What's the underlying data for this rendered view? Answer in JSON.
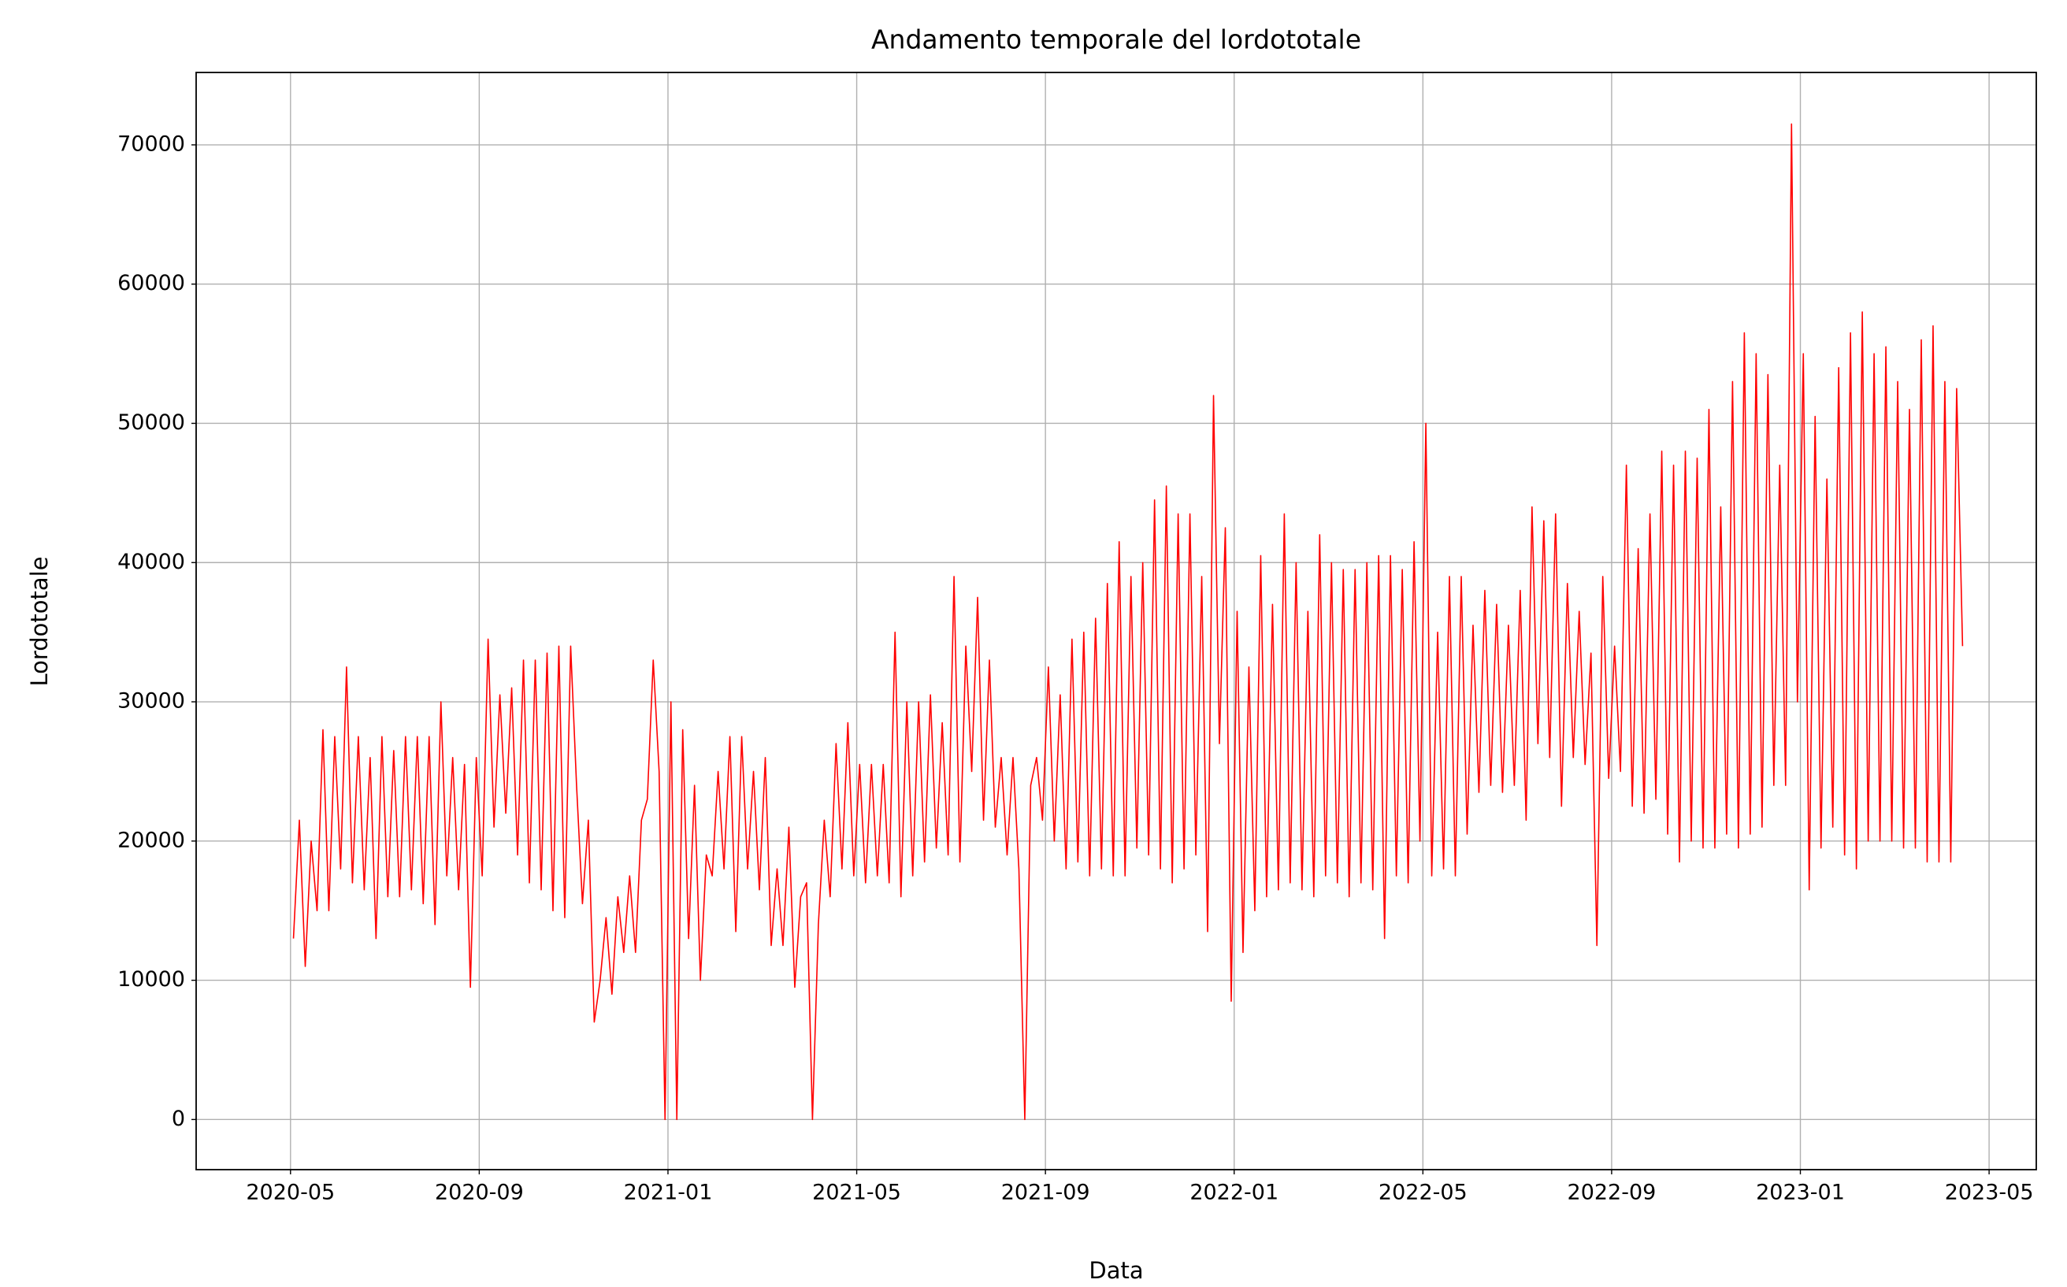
{
  "chart_data": {
    "type": "line",
    "title": "Andamento temporale del lordototale",
    "xlabel": "Data",
    "ylabel": "Lordototale",
    "color": "#ff0000",
    "grid": true,
    "xlim": [
      "2020-03",
      "2023-06"
    ],
    "xticks": [
      "2020-05",
      "2020-09",
      "2021-01",
      "2021-05",
      "2021-09",
      "2022-01",
      "2022-05",
      "2022-09",
      "2023-01",
      "2023-05"
    ],
    "ylim": [
      -3600,
      75200
    ],
    "yticks": [
      0,
      10000,
      20000,
      30000,
      40000,
      50000,
      60000,
      70000
    ],
    "x": [
      "2020-05",
      "2020-05",
      "2020-05",
      "2020-05",
      "2020-05",
      "2020-05",
      "2020-05",
      "2020-05",
      "2020-06",
      "2020-06",
      "2020-06",
      "2020-06",
      "2020-06",
      "2020-06",
      "2020-06",
      "2020-06",
      "2020-07",
      "2020-07",
      "2020-07",
      "2020-07",
      "2020-07",
      "2020-07",
      "2020-07",
      "2020-07",
      "2020-08",
      "2020-08",
      "2020-08",
      "2020-08",
      "2020-08",
      "2020-08",
      "2020-08",
      "2020-08",
      "2020-09",
      "2020-09",
      "2020-09",
      "2020-09",
      "2020-09",
      "2020-09",
      "2020-09",
      "2020-09",
      "2020-10",
      "2020-10",
      "2020-10",
      "2020-10",
      "2020-10",
      "2020-10",
      "2020-10",
      "2020-10",
      "2020-11",
      "2020-11",
      "2020-11",
      "2020-11",
      "2020-11",
      "2020-11",
      "2020-11",
      "2020-11",
      "2020-12",
      "2020-12",
      "2020-12",
      "2020-12",
      "2020-12",
      "2020-12",
      "2020-12",
      "2020-12",
      "2021-01",
      "2021-01",
      "2021-01",
      "2021-01",
      "2021-01",
      "2021-01",
      "2021-01",
      "2021-01",
      "2021-02",
      "2021-02",
      "2021-02",
      "2021-02",
      "2021-02",
      "2021-02",
      "2021-02",
      "2021-02",
      "2021-03",
      "2021-03",
      "2021-03",
      "2021-03",
      "2021-03",
      "2021-03",
      "2021-03",
      "2021-03",
      "2021-04",
      "2021-04",
      "2021-04",
      "2021-04",
      "2021-04",
      "2021-04",
      "2021-04",
      "2021-04",
      "2021-05",
      "2021-05",
      "2021-05",
      "2021-05",
      "2021-05",
      "2021-05",
      "2021-05",
      "2021-05",
      "2021-06",
      "2021-06",
      "2021-06",
      "2021-06",
      "2021-06",
      "2021-06",
      "2021-06",
      "2021-06",
      "2021-07",
      "2021-07",
      "2021-07",
      "2021-07",
      "2021-07",
      "2021-07",
      "2021-07",
      "2021-07",
      "2021-08",
      "2021-08",
      "2021-08",
      "2021-08",
      "2021-08",
      "2021-08",
      "2021-08",
      "2021-08",
      "2021-09",
      "2021-09",
      "2021-09",
      "2021-09",
      "2021-09",
      "2021-09",
      "2021-09",
      "2021-09",
      "2021-10",
      "2021-10",
      "2021-10",
      "2021-10",
      "2021-10",
      "2021-10",
      "2021-10",
      "2021-10",
      "2021-11",
      "2021-11",
      "2021-11",
      "2021-11",
      "2021-11",
      "2021-11",
      "2021-11",
      "2021-11",
      "2021-12",
      "2021-12",
      "2021-12",
      "2021-12",
      "2021-12",
      "2021-12",
      "2021-12",
      "2021-12",
      "2022-01",
      "2022-01",
      "2022-01",
      "2022-01",
      "2022-01",
      "2022-01",
      "2022-01",
      "2022-01",
      "2022-02",
      "2022-02",
      "2022-02",
      "2022-02",
      "2022-02",
      "2022-02",
      "2022-02",
      "2022-02",
      "2022-03",
      "2022-03",
      "2022-03",
      "2022-03",
      "2022-03",
      "2022-03",
      "2022-03",
      "2022-03",
      "2022-04",
      "2022-04",
      "2022-04",
      "2022-04",
      "2022-04",
      "2022-04",
      "2022-04",
      "2022-04",
      "2022-05",
      "2022-05",
      "2022-05",
      "2022-05",
      "2022-05",
      "2022-05",
      "2022-05",
      "2022-05",
      "2022-06",
      "2022-06",
      "2022-06",
      "2022-06",
      "2022-06",
      "2022-06",
      "2022-06",
      "2022-06",
      "2022-07",
      "2022-07",
      "2022-07",
      "2022-07",
      "2022-07",
      "2022-07",
      "2022-07",
      "2022-07",
      "2022-08",
      "2022-08",
      "2022-08",
      "2022-08",
      "2022-08",
      "2022-08",
      "2022-08",
      "2022-08",
      "2022-09",
      "2022-09",
      "2022-09",
      "2022-09",
      "2022-09",
      "2022-09",
      "2022-09",
      "2022-09",
      "2022-10",
      "2022-10",
      "2022-10",
      "2022-10",
      "2022-10",
      "2022-10",
      "2022-10",
      "2022-10",
      "2022-11",
      "2022-11",
      "2022-11",
      "2022-11",
      "2022-11",
      "2022-11",
      "2022-11",
      "2022-11",
      "2022-12",
      "2022-12",
      "2022-12",
      "2022-12",
      "2022-12",
      "2022-12",
      "2022-12",
      "2022-12",
      "2023-01",
      "2023-01",
      "2023-01",
      "2023-01",
      "2023-01",
      "2023-01",
      "2023-01",
      "2023-01",
      "2023-02",
      "2023-02",
      "2023-02",
      "2023-02",
      "2023-02",
      "2023-02",
      "2023-02",
      "2023-02",
      "2023-03",
      "2023-03",
      "2023-03",
      "2023-03",
      "2023-03",
      "2023-03",
      "2023-03",
      "2023-03",
      "2023-04",
      "2023-04",
      "2023-04",
      "2023-04"
    ],
    "values": [
      13000,
      21500,
      11000,
      20000,
      15000,
      28000,
      15000,
      27500,
      18000,
      32500,
      17000,
      27500,
      16500,
      26000,
      13000,
      27500,
      16000,
      26500,
      16000,
      27500,
      16500,
      27500,
      15500,
      27500,
      14000,
      30000,
      17500,
      26000,
      16500,
      25500,
      9500,
      26000,
      17500,
      34500,
      21000,
      30500,
      22000,
      31000,
      19000,
      33000,
      17000,
      33000,
      16500,
      33500,
      15000,
      34000,
      14500,
      34000,
      24000,
      15500,
      21500,
      7000,
      10000,
      14500,
      9000,
      16000,
      12000,
      17500,
      12000,
      21500,
      23000,
      33000,
      25000,
      0,
      30000,
      0,
      28000,
      13000,
      24000,
      10000,
      19000,
      17500,
      25000,
      18000,
      27500,
      13500,
      27500,
      18000,
      25000,
      16500,
      26000,
      12500,
      18000,
      12500,
      21000,
      9500,
      16000,
      17000,
      0,
      14000,
      21500,
      16000,
      27000,
      18000,
      28500,
      17500,
      25500,
      17000,
      25500,
      17500,
      25500,
      17000,
      35000,
      16000,
      30000,
      17500,
      30000,
      18500,
      30500,
      19500,
      28500,
      19000,
      39000,
      18500,
      34000,
      25000,
      37500,
      21500,
      33000,
      21000,
      26000,
      19000,
      26000,
      18000,
      0,
      24000,
      26000,
      21500,
      32500,
      20000,
      30500,
      18000,
      34500,
      18500,
      35000,
      17500,
      36000,
      18000,
      38500,
      17500,
      41500,
      17500,
      39000,
      19500,
      40000,
      19000,
      44500,
      18000,
      45500,
      17000,
      43500,
      18000,
      43500,
      19000,
      39000,
      13500,
      52000,
      27000,
      42500,
      8500,
      36500,
      12000,
      32500,
      15000,
      40500,
      16000,
      37000,
      16500,
      43500,
      17000,
      40000,
      16500,
      36500,
      16000,
      42000,
      17500,
      40000,
      17000,
      39500,
      16000,
      39500,
      17000,
      40000,
      16500,
      40500,
      13000,
      40500,
      17500,
      39500,
      17000,
      41500,
      20000,
      50000,
      17500,
      35000,
      18000,
      39000,
      17500,
      39000,
      20500,
      35500,
      23500,
      38000,
      24000,
      37000,
      23500,
      35500,
      24000,
      38000,
      21500,
      44000,
      27000,
      43000,
      26000,
      43500,
      22500,
      38500,
      26000,
      36500,
      25500,
      33500,
      12500,
      39000,
      24500,
      34000,
      25000,
      47000,
      22500,
      41000,
      22000,
      43500,
      23000,
      48000,
      20500,
      47000,
      18500,
      48000,
      20000,
      47500,
      19500,
      51000,
      19500,
      44000,
      20500,
      53000,
      19500,
      56500,
      20500,
      55000,
      21000,
      53500,
      24000,
      47000,
      24000,
      71500,
      30000,
      55000,
      16500,
      50500,
      19500,
      46000,
      21000,
      54000,
      19000,
      56500,
      18000,
      58000,
      20000,
      55000,
      20000,
      55500,
      20000,
      53000,
      19500,
      51000,
      19500,
      56000,
      18500,
      57000,
      18500,
      53000,
      18500,
      52500,
      34000
    ]
  }
}
